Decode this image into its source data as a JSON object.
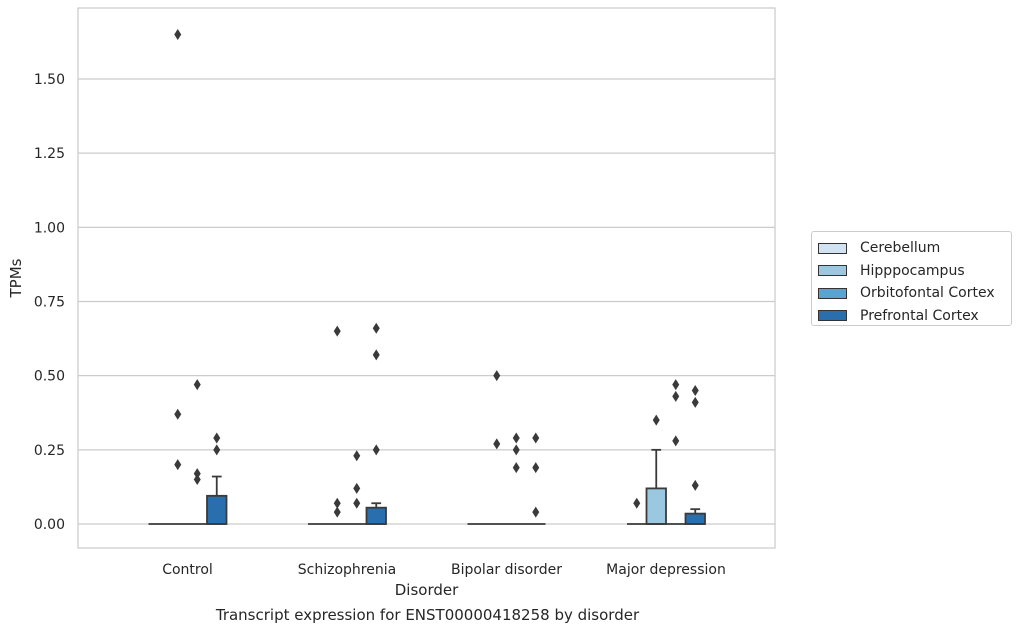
{
  "chart_data": {
    "type": "box",
    "title": "Transcript expression for ENST00000418258 by disorder",
    "xlabel": "Disorder",
    "ylabel": "TPMs",
    "ylim": [
      -0.08,
      1.73
    ],
    "yticks": [
      0.0,
      0.25,
      0.5,
      0.75,
      1.0,
      1.25,
      1.5
    ],
    "ytick_labels": [
      "0.00",
      "0.25",
      "0.50",
      "0.75",
      "1.00",
      "1.25",
      "1.50"
    ],
    "categories": [
      "Control",
      "Schizophrenia",
      "Bipolar disorder",
      "Major depression"
    ],
    "grid": true,
    "legend_position": "right",
    "series": [
      {
        "name": "Cerebellum",
        "color": "#d1e3f3",
        "boxes": [
          {
            "q1": 0,
            "median": 0,
            "q3": 0,
            "whisker_low": 0,
            "whisker_high": 0,
            "outliers": []
          },
          {
            "q1": 0,
            "median": 0,
            "q3": 0,
            "whisker_low": 0,
            "whisker_high": 0,
            "outliers": []
          },
          {
            "q1": 0,
            "median": 0,
            "q3": 0,
            "whisker_low": 0,
            "whisker_high": 0,
            "outliers": []
          },
          {
            "q1": 0,
            "median": 0,
            "q3": 0,
            "whisker_low": 0,
            "whisker_high": 0,
            "outliers": [
              0.07
            ]
          }
        ]
      },
      {
        "name": "Hipppocampus",
        "color": "#9ac8e0",
        "boxes": [
          {
            "q1": 0,
            "median": 0,
            "q3": 0,
            "whisker_low": 0,
            "whisker_high": 0,
            "outliers": [
              1.65,
              0.37,
              0.2
            ]
          },
          {
            "q1": 0,
            "median": 0,
            "q3": 0,
            "whisker_low": 0,
            "whisker_high": 0,
            "outliers": [
              0.65,
              0.07,
              0.04
            ]
          },
          {
            "q1": 0,
            "median": 0,
            "q3": 0,
            "whisker_low": 0,
            "whisker_high": 0,
            "outliers": [
              0.5,
              0.27
            ]
          },
          {
            "q1": 0,
            "median": 0,
            "q3": 0.12,
            "whisker_low": 0,
            "whisker_high": 0.25,
            "outliers": [
              0.35
            ]
          }
        ]
      },
      {
        "name": "Orbitofontal Cortex",
        "color": "#5ba3cf",
        "boxes": [
          {
            "q1": 0,
            "median": 0,
            "q3": 0,
            "whisker_low": 0,
            "whisker_high": 0,
            "outliers": [
              0.15,
              0.47,
              0.17
            ]
          },
          {
            "q1": 0,
            "median": 0,
            "q3": 0,
            "whisker_low": 0,
            "whisker_high": 0,
            "outliers": [
              0.12,
              0.23,
              0.07
            ]
          },
          {
            "q1": 0,
            "median": 0,
            "q3": 0,
            "whisker_low": 0,
            "whisker_high": 0,
            "outliers": [
              0.29,
              0.25,
              0.19
            ]
          },
          {
            "q1": 0,
            "median": 0,
            "q3": 0,
            "whisker_low": 0,
            "whisker_high": 0,
            "outliers": [
              0.47,
              0.43,
              0.28
            ]
          }
        ]
      },
      {
        "name": "Prefrontal Cortex",
        "color": "#2a6fad",
        "boxes": [
          {
            "q1": 0,
            "median": 0,
            "q3": 0.095,
            "whisker_low": 0,
            "whisker_high": 0.16,
            "outliers": [
              0.29,
              0.25
            ]
          },
          {
            "q1": 0,
            "median": 0,
            "q3": 0.055,
            "whisker_low": 0,
            "whisker_high": 0.07,
            "outliers": [
              0.66,
              0.57,
              0.25
            ]
          },
          {
            "q1": 0,
            "median": 0,
            "q3": 0,
            "whisker_low": 0,
            "whisker_high": 0,
            "outliers": [
              0.29,
              0.19,
              0.04
            ]
          },
          {
            "q1": 0,
            "median": 0,
            "q3": 0.035,
            "whisker_low": 0,
            "whisker_high": 0.05,
            "outliers": [
              0.45,
              0.41,
              0.13
            ]
          }
        ]
      }
    ]
  }
}
